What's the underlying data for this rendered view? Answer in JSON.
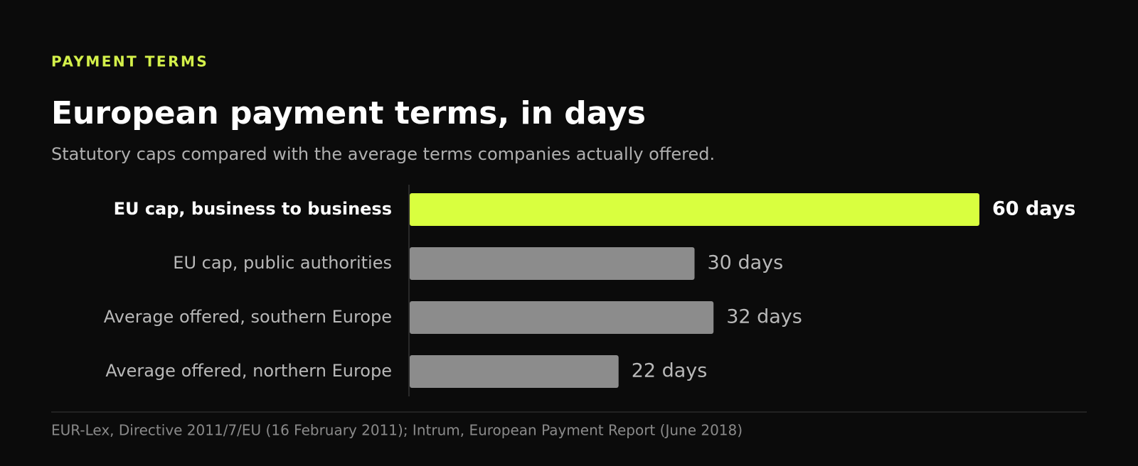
{
  "chart_data": {
    "type": "bar",
    "orientation": "horizontal",
    "kicker": "PAYMENT TERMS",
    "title": "European payment terms, in days",
    "subtitle": "Statutory caps compared with the average terms companies actually offered.",
    "categories": [
      "EU cap, business to business",
      "EU cap, public authorities",
      "Average offered, southern Europe",
      "Average offered, northern Europe"
    ],
    "values": [
      60,
      30,
      32,
      22
    ],
    "value_labels": [
      "60 days",
      "30 days",
      "32 days",
      "22 days"
    ],
    "colors": [
      "#d9ff3f",
      "#8c8c8c",
      "#8c8c8c",
      "#8c8c8c"
    ],
    "source": "EUR-Lex, Directive 2011/7/EU (16 February 2011); Intrum, European Payment Report (June 2018)"
  }
}
